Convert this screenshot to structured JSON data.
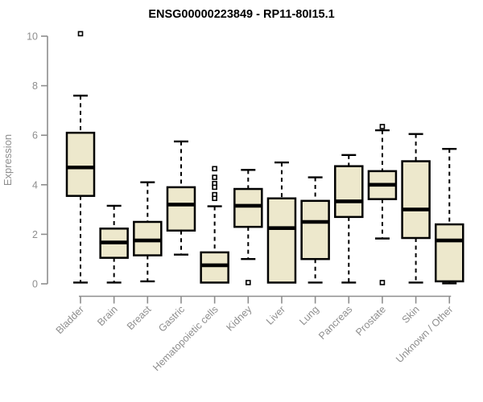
{
  "chart_data": {
    "type": "boxplot",
    "title": "ENSG00000223849 - RP11-80I15.1",
    "ylabel": "Expression",
    "xlabel": "",
    "ylim": [
      0,
      10
    ],
    "yticks": [
      0,
      2,
      4,
      6,
      8,
      10
    ],
    "grid": false,
    "legend": false,
    "categories": [
      "Bladder",
      "Brain",
      "Breast",
      "Gastric",
      "Hematopoietic cells",
      "Kidney",
      "Liver",
      "Lung",
      "Pancreas",
      "Prostate",
      "Skin",
      "Unknown / Other"
    ],
    "boxes": [
      {
        "category": "Bladder",
        "whisker_low": 0.05,
        "q1": 3.55,
        "median": 4.7,
        "q3": 6.1,
        "whisker_high": 7.6,
        "outliers": [
          10.1
        ]
      },
      {
        "category": "Brain",
        "whisker_low": 0.05,
        "q1": 1.05,
        "median": 1.67,
        "q3": 2.23,
        "whisker_high": 3.15,
        "outliers": []
      },
      {
        "category": "Breast",
        "whisker_low": 0.1,
        "q1": 1.15,
        "median": 1.75,
        "q3": 2.5,
        "whisker_high": 4.1,
        "outliers": []
      },
      {
        "category": "Gastric",
        "whisker_low": 1.18,
        "q1": 2.15,
        "median": 3.2,
        "q3": 3.9,
        "whisker_high": 5.75,
        "outliers": []
      },
      {
        "category": "Hematopoietic cells",
        "whisker_low": 0.05,
        "q1": 0.05,
        "median": 0.75,
        "q3": 1.27,
        "whisker_high": 3.13,
        "outliers": [
          4.65,
          4.3,
          4.05,
          3.9,
          3.6,
          3.45
        ]
      },
      {
        "category": "Kidney",
        "whisker_low": 1.0,
        "q1": 2.3,
        "median": 3.15,
        "q3": 3.83,
        "whisker_high": 4.6,
        "outliers": [
          0.05
        ]
      },
      {
        "category": "Liver",
        "whisker_low": 0.05,
        "q1": 0.05,
        "median": 2.25,
        "q3": 3.45,
        "whisker_high": 4.9,
        "outliers": []
      },
      {
        "category": "Lung",
        "whisker_low": 0.05,
        "q1": 1.0,
        "median": 2.5,
        "q3": 3.35,
        "whisker_high": 4.3,
        "outliers": []
      },
      {
        "category": "Pancreas",
        "whisker_low": 0.05,
        "q1": 2.7,
        "median": 3.33,
        "q3": 4.75,
        "whisker_high": 5.2,
        "outliers": []
      },
      {
        "category": "Prostate",
        "whisker_low": 1.83,
        "q1": 3.42,
        "median": 4.0,
        "q3": 4.55,
        "whisker_high": 6.2,
        "outliers": [
          6.35,
          0.05
        ]
      },
      {
        "category": "Skin",
        "whisker_low": 0.05,
        "q1": 1.85,
        "median": 3.0,
        "q3": 4.95,
        "whisker_high": 6.05,
        "outliers": []
      },
      {
        "category": "Unknown / Other",
        "whisker_low": 0.02,
        "q1": 0.1,
        "median": 1.75,
        "q3": 2.4,
        "whisker_high": 5.45,
        "outliers": []
      }
    ],
    "colors": {
      "box_fill": "#EDE8CC",
      "box_border": "#000000",
      "median": "#000000",
      "whisker": "#000000",
      "outlier_fill": "#ffffff",
      "axis": "#8e8e8e",
      "tick_label": "#8e8e8e",
      "title": "#000000"
    }
  }
}
